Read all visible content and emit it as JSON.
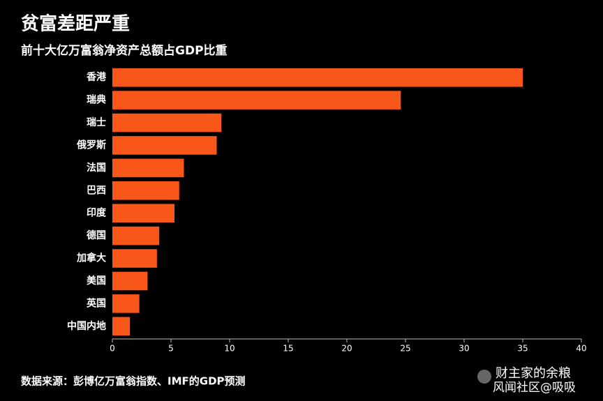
{
  "chart_data": {
    "type": "bar",
    "orientation": "horizontal",
    "title": "贫富差距严重",
    "subtitle": "前十大亿万富翁净资产总额占GDP比重",
    "categories": [
      "香港",
      "瑞典",
      "瑞士",
      "俄罗斯",
      "法国",
      "巴西",
      "印度",
      "德国",
      "加拿大",
      "美国",
      "英国",
      "中国内地"
    ],
    "values": [
      35,
      24.6,
      9.3,
      8.9,
      6.1,
      5.7,
      5.3,
      4.0,
      3.8,
      3.0,
      2.3,
      1.5
    ],
    "color": "#f9561a",
    "xlim": [
      0,
      40
    ],
    "xticks": [
      0,
      5,
      10,
      15,
      20,
      25,
      30,
      35,
      40
    ],
    "source": "数据来源：彭博亿万富翁指数、IMF的GDP预测",
    "watermark": [
      "财主家的余粮",
      "风闻社区@吸吸"
    ]
  }
}
